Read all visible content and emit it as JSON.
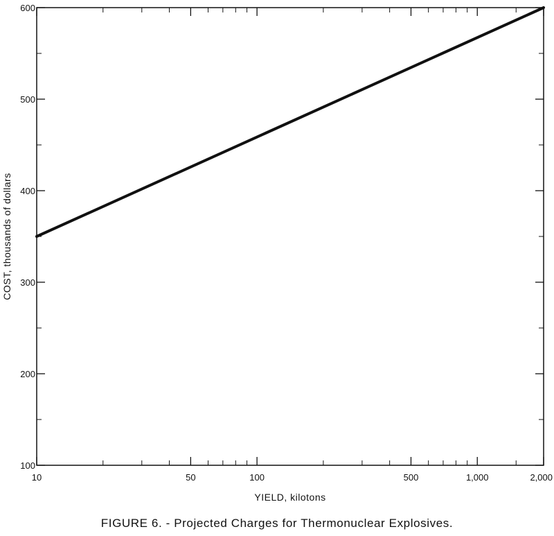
{
  "chart_data": {
    "type": "line",
    "caption": "FIGURE 6. - Projected Charges for Thermonuclear Explosives.",
    "xlabel": "YIELD, kilotons",
    "ylabel": "COST, thousands of dollars",
    "xscale": "log",
    "xlim": [
      10,
      2000
    ],
    "ylim": [
      100,
      600
    ],
    "x_ticks": [
      {
        "value": 10,
        "label": "10"
      },
      {
        "value": 50,
        "label": "50"
      },
      {
        "value": 100,
        "label": "100"
      },
      {
        "value": 500,
        "label": "500"
      },
      {
        "value": 1000,
        "label": "1,000"
      },
      {
        "value": 2000,
        "label": "2,000"
      }
    ],
    "y_ticks": [
      {
        "value": 100,
        "label": "100"
      },
      {
        "value": 200,
        "label": "200"
      },
      {
        "value": 300,
        "label": "300"
      },
      {
        "value": 400,
        "label": "400"
      },
      {
        "value": 500,
        "label": "500"
      },
      {
        "value": 600,
        "label": "600"
      }
    ],
    "x_minor_ticks": [
      20,
      30,
      40,
      60,
      70,
      80,
      90,
      200,
      300,
      400,
      600,
      700,
      800,
      900,
      1500
    ],
    "y_minor_ticks": [
      150,
      250,
      350,
      450,
      550
    ],
    "series": [
      {
        "x": [
          10,
          2000
        ],
        "y": [
          350,
          600
        ]
      }
    ],
    "grid": false,
    "colors": {
      "line": "#111111",
      "frame": "#111111"
    }
  }
}
